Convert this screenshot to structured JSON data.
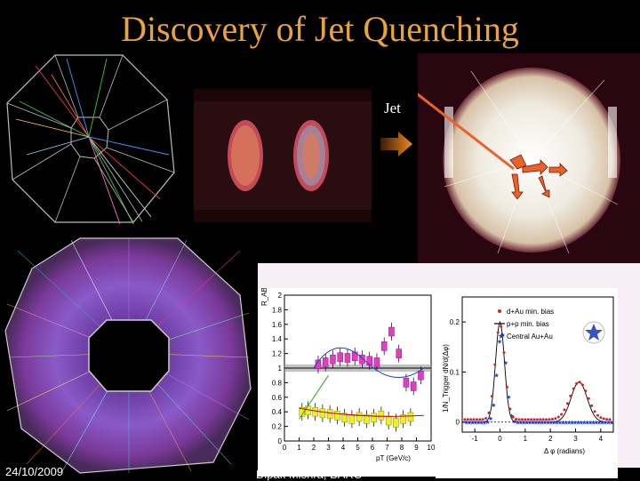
{
  "slide": {
    "title": "Discovery of Jet Quenching",
    "footer_date": "24/10/2009",
    "footer_author": "Dipak Mishra, BARC",
    "jet_label": "Jet"
  },
  "colors": {
    "title": "#e8a33a",
    "background": "#000000",
    "arrow": "#e8622a",
    "legend_dau": "#d62020",
    "legend_pp": "#000000",
    "legend_auau": "#1a3ad6"
  },
  "icons": [
    "star-logo-icon",
    "arrow-right-icon",
    "jet-arrow-icon"
  ],
  "chart_data": [
    {
      "type": "scatter",
      "title": "",
      "xlabel": "pT (GeV/c)",
      "ylabel": "R_AB",
      "xlim": [
        0,
        10
      ],
      "ylim": [
        0,
        2
      ],
      "x_ticks": [
        "0",
        "1",
        "2",
        "3",
        "4",
        "5",
        "6",
        "7",
        "8",
        "9",
        "10"
      ],
      "y_ticks": [
        "0",
        "0.2",
        "0.4",
        "0.6",
        "0.8",
        "1",
        "1.2",
        "1.4",
        "1.6",
        "1.8",
        "2"
      ],
      "series": [
        {
          "values": [
            [
              2.3,
              1.05
            ],
            [
              2.8,
              1.08
            ],
            [
              3.3,
              1.12
            ],
            [
              3.8,
              1.15
            ],
            [
              4.3,
              1.14
            ],
            [
              4.8,
              1.16
            ],
            [
              5.3,
              1.12
            ],
            [
              5.8,
              1.1
            ],
            [
              6.3,
              1.08
            ],
            [
              6.8,
              1.3
            ],
            [
              7.3,
              1.5
            ],
            [
              7.8,
              1.2
            ],
            [
              8.3,
              0.8
            ],
            [
              8.8,
              0.75
            ],
            [
              9.3,
              0.9
            ]
          ]
        },
        {
          "values": [
            [
              1.2,
              0.4
            ],
            [
              1.6,
              0.42
            ],
            [
              2.1,
              0.4
            ],
            [
              2.6,
              0.38
            ],
            [
              3.1,
              0.37
            ],
            [
              3.6,
              0.35
            ],
            [
              4.1,
              0.32
            ],
            [
              4.6,
              0.3
            ],
            [
              5.1,
              0.33
            ],
            [
              5.6,
              0.3
            ],
            [
              6.1,
              0.32
            ],
            [
              6.6,
              0.35
            ],
            [
              7.1,
              0.28
            ],
            [
              7.6,
              0.25
            ],
            [
              8.1,
              0.3
            ],
            [
              8.6,
              0.33
            ]
          ]
        }
      ]
    },
    {
      "type": "scatter",
      "title": "",
      "xlabel": "Δ φ (radians)",
      "ylabel": "1/N_Trigger dN/d(Δφ)",
      "xlim": [
        -1.5,
        4.5
      ],
      "ylim": [
        -0.02,
        0.25
      ],
      "x_ticks": [
        "-1",
        "0",
        "1",
        "2",
        "3",
        "4"
      ],
      "y_ticks": [
        "0",
        "0.1",
        "0.2"
      ],
      "legend_position": "top-left",
      "series": [
        {
          "name": "d+Au min. bias"
        },
        {
          "name": "p+p min. bias"
        },
        {
          "name": "Central Au+Au"
        }
      ]
    }
  ]
}
